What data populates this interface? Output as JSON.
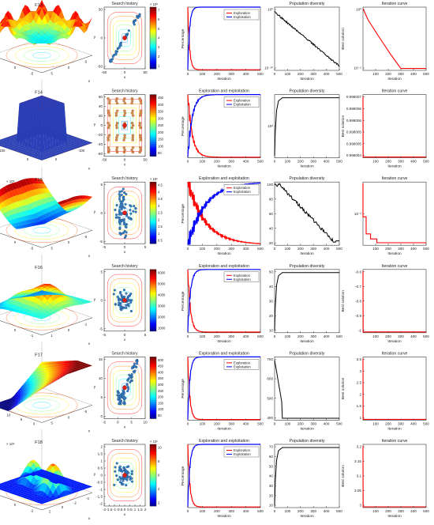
{
  "figure": {
    "rows": [
      {
        "func": "F13",
        "surface": {
          "title": "F13",
          "xlabel": "x",
          "ylabel": "y",
          "zlabel": "z",
          "exponent": "",
          "palette": "bowl",
          "xticks": [
            "5",
            "0",
            "-5"
          ],
          "yticks": [
            "5",
            "0",
            "-5"
          ],
          "zticks": [
            "4",
            "2",
            "0"
          ]
        },
        "search": {
          "title": "Search history",
          "xlabel": "x",
          "ylabel": "y",
          "xticks": [
            "-50",
            "0",
            "50"
          ],
          "yticks": [
            "50",
            "0",
            "-50"
          ],
          "cbar_ticks": [
            "7",
            "6",
            "5",
            "4",
            "3",
            "2",
            "1"
          ],
          "cbar_exp": "× 10⁸",
          "pattern": "line"
        },
        "explore": {
          "title": "",
          "xlabel": "Iteration",
          "ylabel": "Percentage",
          "xticks": [
            "0",
            "100",
            "200",
            "300",
            "400",
            "500"
          ],
          "legend": [
            "Exploration",
            "Exploitation"
          ],
          "speed": 12
        },
        "diversity": {
          "title": "Population diversity",
          "xlabel": "Iteration",
          "xticks": [
            "0",
            "100",
            "200",
            "300",
            "400",
            "500"
          ],
          "yticks": [
            "10⁰",
            "10⁻¹⁰"
          ],
          "shape": "decay"
        },
        "iteration": {
          "title": "Iteration curve",
          "xlabel": "Iteration",
          "ylabel": "Best solution",
          "xticks": [
            "100",
            "200",
            "300",
            "400",
            "500"
          ],
          "yticks": [
            "10⁰",
            "10⁻⁵"
          ],
          "shape": "log_decay"
        }
      },
      {
        "func": "F14",
        "surface": {
          "title": "F14",
          "xlabel": "x",
          "ylabel": "y",
          "zlabel": "z",
          "exponent": "",
          "palette": "spike",
          "xticks": [
            "0",
            "-100"
          ],
          "yticks": [
            "100",
            "0"
          ],
          "zticks": [
            "400",
            "200",
            "0"
          ]
        },
        "search": {
          "title": "Search history",
          "xlabel": "x",
          "ylabel": "y",
          "xticks": [
            "-50",
            "0",
            "50"
          ],
          "yticks": [
            "60",
            "40",
            "20",
            "0",
            "-20",
            "-40",
            "-60"
          ],
          "cbar_ticks": [
            "450",
            "400",
            "350",
            "300",
            "250",
            "200",
            "150",
            "100",
            "50"
          ],
          "cbar_exp": "",
          "pattern": "grid"
        },
        "explore": {
          "title": "Exploration and exploitation",
          "xlabel": "Iteration",
          "ylabel": "Percentage",
          "xticks": [
            "0",
            "100",
            "200",
            "300",
            "400",
            "500"
          ],
          "legend": [
            "Exploration",
            "Exploitation"
          ],
          "speed": 30
        },
        "diversity": {
          "title": "Population diversity",
          "xlabel": "Iteration",
          "xticks": [
            "0",
            "100",
            "200",
            "300",
            "400",
            "500"
          ],
          "yticks": [
            "10²"
          ],
          "shape": "rise"
        },
        "iteration": {
          "title": "Iteration curve",
          "xlabel": "Iteration",
          "ylabel": "Best solution",
          "xticks": [
            "100",
            "200",
            "300",
            "400",
            "500"
          ],
          "yticks": [
            "0.998007",
            "0.998006",
            "0.998006",
            "0.998005",
            "0.998005",
            "0.998004"
          ],
          "shape": "flat"
        }
      },
      {
        "func": "F15",
        "surface": {
          "title": "F15",
          "xlabel": "x",
          "ylabel": "y",
          "zlabel": "z",
          "exponent": "× 10⁵",
          "palette": "valley",
          "xticks": [
            "5",
            "0",
            "-5"
          ],
          "yticks": [
            "5",
            "0",
            "-5"
          ],
          "zticks": [
            "2",
            "1",
            "0"
          ]
        },
        "search": {
          "title": "Search history",
          "xlabel": "x",
          "ylabel": "y",
          "xticks": [
            "-5",
            "0",
            "5"
          ],
          "yticks": [
            "5",
            "0",
            "-5"
          ],
          "cbar_ticks": [
            "4.5",
            "4",
            "3.5",
            "3",
            "2.5",
            "2",
            "1.5",
            "1",
            "0.5"
          ],
          "cbar_exp": "× 10⁵",
          "pattern": "vertical"
        },
        "explore": {
          "title": "Exploration and exploitation",
          "xlabel": "Iteration",
          "ylabel": "Percentage",
          "xticks": [
            "0",
            "100",
            "200",
            "300",
            "400",
            "500"
          ],
          "legend": [
            "Exploration",
            "Exploitation"
          ],
          "speed": 120
        },
        "diversity": {
          "title": "Population diversity",
          "xlabel": "Iteration",
          "xticks": [
            "0",
            "100",
            "200",
            "300",
            "400",
            "500"
          ],
          "yticks": [
            "100",
            "80",
            "60",
            "40",
            "20"
          ],
          "shape": "hump"
        },
        "iteration": {
          "title": "Iteration curve",
          "xlabel": "Iteration",
          "ylabel": "",
          "xticks": [
            "100",
            "200",
            "300",
            "400",
            "500"
          ],
          "yticks": [
            "10⁻³"
          ],
          "shape": "steps"
        }
      },
      {
        "func": "F16",
        "surface": {
          "title": "F16",
          "xlabel": "x",
          "ylabel": "y",
          "zlabel": "z",
          "exponent": "",
          "palette": "hill",
          "xticks": [
            "1",
            "0",
            "-1"
          ],
          "yticks": [
            "1",
            "0",
            "-1"
          ],
          "zticks": [
            "4",
            "2",
            "0"
          ]
        },
        "search": {
          "title": "Search history",
          "xlabel": "x",
          "ylabel": "y",
          "xticks": [
            "-5",
            "0",
            "5"
          ],
          "yticks": [
            "5",
            "0",
            "-5"
          ],
          "cbar_ticks": [
            "6000",
            "5000",
            "4000",
            "3000",
            "2000",
            "1000"
          ],
          "cbar_exp": "",
          "pattern": "cluster"
        },
        "explore": {
          "title": "Exploration and exploitation",
          "xlabel": "Iteration",
          "ylabel": "Percentage",
          "xticks": [
            "0",
            "100",
            "200",
            "300",
            "400",
            "500"
          ],
          "legend": [
            "Exploration",
            "Exploitation"
          ],
          "speed": 18
        },
        "diversity": {
          "title": "Population diversity",
          "xlabel": "Iteration",
          "xticks": [
            "0",
            "100",
            "200",
            "300",
            "400",
            "500"
          ],
          "yticks": [
            "50",
            "40",
            "30",
            "20",
            "10"
          ],
          "shape": "rise"
        },
        "iteration": {
          "title": "Iteration curve",
          "xlabel": "Iteration",
          "ylabel": "Best solution",
          "xticks": [
            "100",
            "200",
            "300",
            "400",
            "500"
          ],
          "yticks": [
            "-0.6",
            "-0.7",
            "-0.8",
            "-0.9",
            "-1"
          ],
          "shape": "flat"
        }
      },
      {
        "func": "F17",
        "surface": {
          "title": "F17",
          "xlabel": "x",
          "ylabel": "y",
          "zlabel": "z",
          "exponent": "",
          "palette": "ramp",
          "xticks": [
            "5",
            "0",
            "-5"
          ],
          "yticks": [
            "15",
            "10",
            "5",
            "0"
          ],
          "zticks": [
            "300",
            "200",
            "100"
          ]
        },
        "search": {
          "title": "Search history",
          "xlabel": "x",
          "ylabel": "y",
          "xticks": [
            "-5",
            "0",
            "5",
            "10"
          ],
          "yticks": [
            "15",
            "10",
            "5",
            "0"
          ],
          "cbar_ticks": [
            "500",
            "450",
            "400",
            "350",
            "300",
            "250",
            "200",
            "150",
            "100",
            "50"
          ],
          "cbar_exp": "",
          "pattern": "diag"
        },
        "explore": {
          "title": "Exploration and exploitation",
          "xlabel": "Iteration",
          "ylabel": "Percentage",
          "xticks": [
            "0",
            "100",
            "200",
            "300",
            "400",
            "500"
          ],
          "legend": [
            "Exploration",
            "Exploitation"
          ],
          "speed": 14
        },
        "diversity": {
          "title": "Population diversity",
          "xlabel": "Iteration",
          "xticks": [
            "0",
            "100",
            "200",
            "300",
            "400",
            "500"
          ],
          "yticks": [
            "700",
            "600",
            "500",
            "400"
          ],
          "shape": "drop"
        },
        "iteration": {
          "title": "Iteration curve",
          "xlabel": "Iteration",
          "ylabel": "Best solution",
          "xticks": [
            "100",
            "200",
            "300",
            "400",
            "500"
          ],
          "yticks": [
            "3.5",
            "3",
            "2.5",
            "2",
            "1.5",
            "1"
          ],
          "shape": "flat"
        }
      },
      {
        "func": "F18",
        "surface": {
          "title": "F18",
          "xlabel": "x",
          "ylabel": "y",
          "zlabel": "z",
          "exponent": "× 10⁶",
          "palette": "peaks",
          "xticks": [
            "2",
            "0",
            "-2",
            "-4"
          ],
          "yticks": [
            "2",
            "0",
            "-2"
          ],
          "zticks": [
            "1",
            "0.5",
            "0"
          ]
        },
        "search": {
          "title": "Search history",
          "xlabel": "x",
          "ylabel": "y",
          "xticks": [
            "-2",
            "-1.5",
            "-1",
            "-0.5",
            "0",
            "0.5",
            "1",
            "1.5",
            "2"
          ],
          "yticks": [
            "2",
            "1.5",
            "1",
            "0.5",
            "0",
            "-0.5",
            "-1",
            "-1.5",
            "-2"
          ],
          "cbar_ticks": [
            "10",
            "8",
            "6",
            "4",
            "2"
          ],
          "cbar_exp": "× 10⁶",
          "pattern": "cluster"
        },
        "explore": {
          "title": "Exploration and exploitation",
          "xlabel": "Iteration",
          "ylabel": "Percentage",
          "xticks": [
            "0",
            "100",
            "200",
            "300",
            "400",
            "500"
          ],
          "legend": [
            "Exploration",
            "Exploitation"
          ],
          "speed": 14
        },
        "diversity": {
          "title": "Population diversity",
          "xlabel": "Iteration",
          "xticks": [
            "0",
            "100",
            "200",
            "300",
            "400",
            "500"
          ],
          "yticks": [
            "70",
            "60",
            "50",
            "40",
            "30",
            "20",
            "10"
          ],
          "shape": "rise"
        },
        "iteration": {
          "title": "Iteration curve",
          "xlabel": "Iteration",
          "ylabel": "Best solution",
          "xticks": [
            "100",
            "200",
            "300",
            "400",
            "500"
          ],
          "yticks": [
            "3.2",
            "3.15",
            "3.1",
            "3.05",
            "3"
          ],
          "shape": "flat"
        }
      }
    ]
  },
  "chart_data": [
    {
      "type": "line",
      "title": "Exploration and exploitation",
      "xlabel": "Iteration",
      "ylabel": "Percentage",
      "xlim": [
        0,
        500
      ],
      "ylim": [
        0,
        100
      ],
      "series": [
        {
          "name": "Exploration",
          "color": "#ff0000",
          "x": [
            0,
            10,
            20,
            50,
            100,
            500
          ],
          "values": [
            100,
            20,
            5,
            2,
            1,
            1
          ]
        },
        {
          "name": "Exploitation",
          "color": "#0000ff",
          "x": [
            0,
            10,
            20,
            50,
            100,
            500
          ],
          "values": [
            0,
            80,
            95,
            98,
            99,
            99
          ]
        }
      ]
    },
    {
      "type": "line",
      "title": "Population diversity",
      "xlabel": "Iteration",
      "xlim": [
        0,
        500
      ],
      "series": [
        {
          "values": [
            1,
            0.1,
            0.001,
            1e-06,
            1e-10,
            1e-14
          ]
        }
      ]
    },
    {
      "type": "line",
      "title": "Iteration curve",
      "xlabel": "Iteration",
      "ylabel": "Best solution",
      "xlim": [
        0,
        500
      ],
      "series": [
        {
          "values": [
            1,
            0.001,
            1e-06,
            1e-09,
            1e-12
          ]
        }
      ]
    }
  ]
}
